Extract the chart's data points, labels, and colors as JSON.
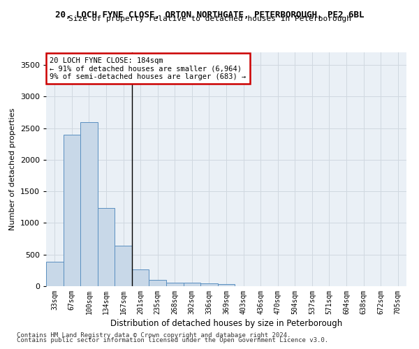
{
  "title_line1": "20, LOCH FYNE CLOSE, ORTON NORTHGATE, PETERBOROUGH, PE2 6BL",
  "title_line2": "Size of property relative to detached houses in Peterborough",
  "xlabel": "Distribution of detached houses by size in Peterborough",
  "ylabel": "Number of detached properties",
  "categories": [
    "33sqm",
    "67sqm",
    "100sqm",
    "134sqm",
    "167sqm",
    "201sqm",
    "235sqm",
    "268sqm",
    "302sqm",
    "336sqm",
    "369sqm",
    "403sqm",
    "436sqm",
    "470sqm",
    "504sqm",
    "537sqm",
    "571sqm",
    "604sqm",
    "638sqm",
    "672sqm",
    "705sqm"
  ],
  "values": [
    390,
    2400,
    2600,
    1240,
    640,
    260,
    95,
    60,
    55,
    45,
    30,
    0,
    0,
    0,
    0,
    0,
    0,
    0,
    0,
    0,
    0
  ],
  "bar_color": "#c8d8e8",
  "bar_edge_color": "#5a8fc0",
  "annotation_text": "20 LOCH FYNE CLOSE: 184sqm\n← 91% of detached houses are smaller (6,964)\n9% of semi-detached houses are larger (683) →",
  "annotation_box_color": "#ffffff",
  "annotation_box_edge_color": "#cc0000",
  "vertical_line_x": 4.5,
  "ylim": [
    0,
    3700
  ],
  "yticks": [
    0,
    500,
    1000,
    1500,
    2000,
    2500,
    3000,
    3500
  ],
  "grid_color": "#d0d8e0",
  "background_color": "#eaf0f6",
  "footer_line1": "Contains HM Land Registry data © Crown copyright and database right 2024.",
  "footer_line2": "Contains public sector information licensed under the Open Government Licence v3.0."
}
